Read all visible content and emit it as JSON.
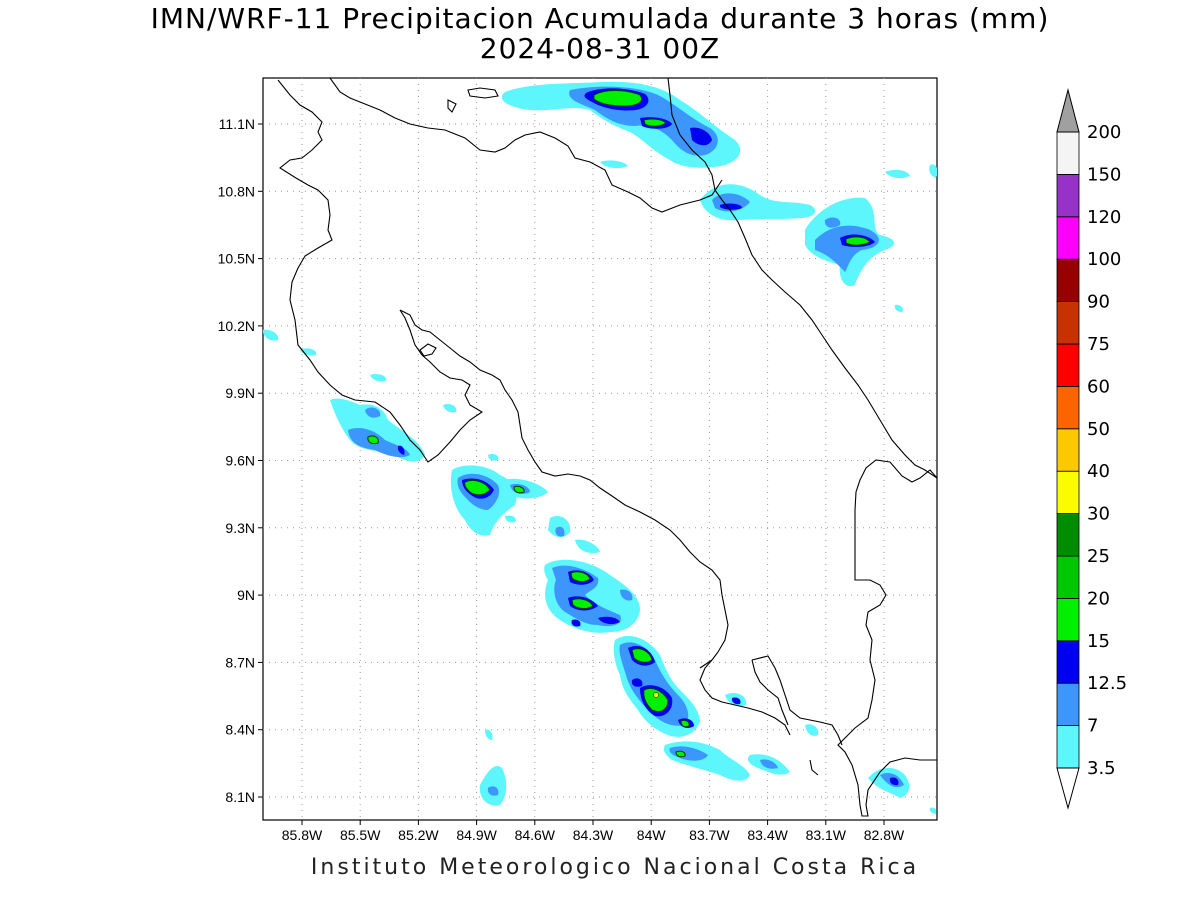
{
  "header": {
    "title_line1": "IMN/WRF-11 Precipitacion Acumulada durante 3 horas (mm)",
    "title_line2": "2024-08-31 00Z"
  },
  "footer": {
    "credit": "Instituto Meteorologico Nacional Costa Rica"
  },
  "map": {
    "lat_ticks": [
      "11.1N",
      "10.8N",
      "10.5N",
      "10.2N",
      "9.9N",
      "9.6N",
      "9.3N",
      "9N",
      "8.7N",
      "8.4N",
      "8.1N"
    ],
    "lon_ticks": [
      "85.8W",
      "85.5W",
      "85.2W",
      "84.9W",
      "84.6W",
      "84.3W",
      "84W",
      "83.7W",
      "83.4W",
      "83.1W",
      "82.8W"
    ]
  },
  "colorbar": {
    "levels": [
      "3.5",
      "7",
      "12.5",
      "15",
      "20",
      "25",
      "30",
      "40",
      "50",
      "60",
      "75",
      "90",
      "100",
      "120",
      "150",
      "200"
    ],
    "colors": [
      "#5cf6fc",
      "#3c96fc",
      "#0000f0",
      "#00f000",
      "#00c800",
      "#008c00",
      "#fcfc00",
      "#fcc800",
      "#fc6400",
      "#fc0000",
      "#c83200",
      "#960000",
      "#fc00fc",
      "#9632c8",
      "#f4f4f4",
      "#a0a0a0"
    ]
  }
}
